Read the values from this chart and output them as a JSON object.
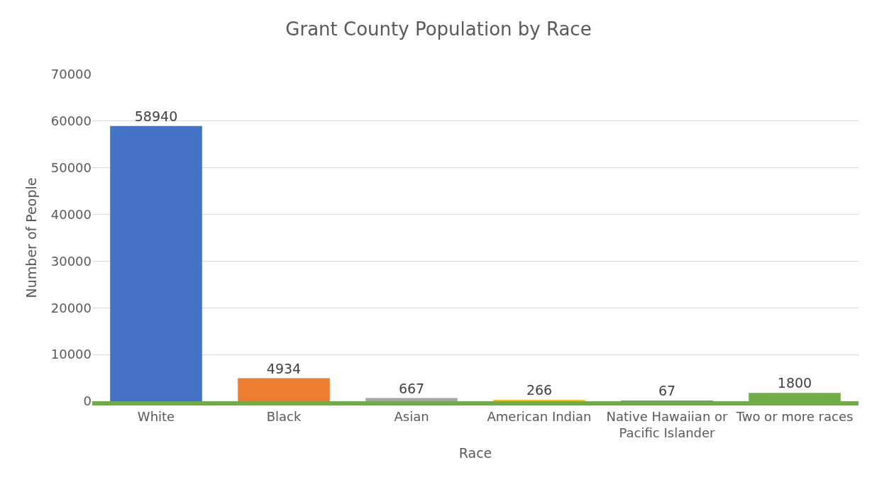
{
  "chart_data": {
    "type": "bar",
    "title": "Grant County Population by Race",
    "xlabel": "Race",
    "ylabel": "Number of People",
    "categories": [
      "White",
      "Black",
      "Asian",
      "American Indian",
      "Native Hawaiian or Pacific Islander",
      "Two or more races"
    ],
    "values": [
      58940,
      4934,
      667,
      266,
      67,
      1800
    ],
    "colors": [
      "#4472c4",
      "#ed7d31",
      "#a5a5a5",
      "#ffc000",
      "#5b9bd5",
      "#70ad47"
    ],
    "ylim": [
      0,
      70000
    ],
    "yticks": [
      0,
      10000,
      20000,
      30000,
      40000,
      50000,
      60000,
      70000
    ],
    "grid": "y",
    "data_labels": true
  }
}
